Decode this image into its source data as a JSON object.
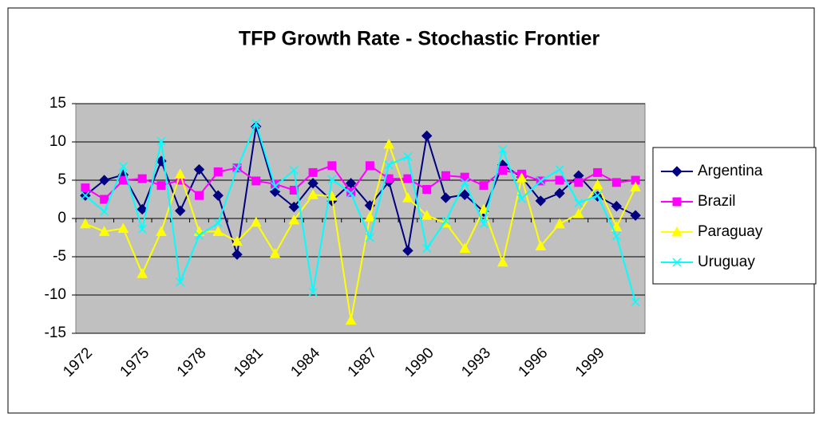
{
  "chart_data": {
    "type": "line",
    "title": "TFP Growth Rate - Stochastic Frontier",
    "categories": [
      "1972",
      null,
      null,
      "1975",
      null,
      null,
      "1978",
      null,
      null,
      "1981",
      null,
      null,
      "1984",
      null,
      null,
      "1987",
      null,
      null,
      "1990",
      null,
      null,
      "1993",
      null,
      null,
      "1996",
      null,
      null,
      "1999",
      null,
      null
    ],
    "series": [
      {
        "name": "Argentina",
        "color": "#000080",
        "marker": "diamond",
        "values": [
          3,
          5,
          5.7,
          1.2,
          7.5,
          1,
          6.4,
          3,
          -4.7,
          12,
          3.5,
          1.5,
          4.6,
          2.3,
          4.6,
          1.7,
          4.8,
          -4.2,
          10.8,
          2.7,
          3.1,
          0.9,
          7,
          5.4,
          2.3,
          3.3,
          5.6,
          2.9,
          1.6,
          0.4
        ]
      },
      {
        "name": "Brazil",
        "color": "#FF00FF",
        "marker": "square",
        "values": [
          4,
          2.5,
          5,
          5.2,
          4.3,
          5,
          3,
          6.1,
          6.6,
          4.9,
          4.5,
          3.7,
          6,
          6.9,
          3.4,
          6.9,
          5.2,
          5.2,
          3.8,
          5.6,
          5.4,
          4.3,
          6.3,
          5.8,
          4.9,
          5,
          4.7,
          6,
          4.7,
          5
        ]
      },
      {
        "name": "Paraguay",
        "color": "#FFFF00",
        "marker": "triangle",
        "values": [
          -0.7,
          -1.7,
          -1.3,
          -7.2,
          -1.7,
          5.8,
          -1.7,
          -1.7,
          -3,
          -0.5,
          -4.6,
          -0.2,
          3.1,
          2.9,
          -13.3,
          0.2,
          9.7,
          2.7,
          0.4,
          -0.6,
          -3.9,
          1.2,
          -5.7,
          5.3,
          -3.6,
          -0.7,
          0.6,
          4.4,
          -1.1,
          4.1
        ]
      },
      {
        "name": "Uruguay",
        "color": "#00FFFF",
        "marker": "x",
        "values": [
          3,
          0.9,
          6.8,
          -1.4,
          10.1,
          -8.3,
          -2.2,
          -0.6,
          6.5,
          12.4,
          4.2,
          6.3,
          -9.6,
          5.1,
          3.3,
          -2.5,
          7,
          8.1,
          -3.9,
          -0.3,
          4.7,
          -0.7,
          9,
          2.6,
          4.9,
          6.4,
          2,
          3,
          -2.3,
          -10.9
        ]
      }
    ],
    "ylim": [
      -15,
      15
    ],
    "yticks": [
      -15,
      -10,
      -5,
      0,
      5,
      10,
      15
    ],
    "grid": true,
    "legend": "right"
  }
}
